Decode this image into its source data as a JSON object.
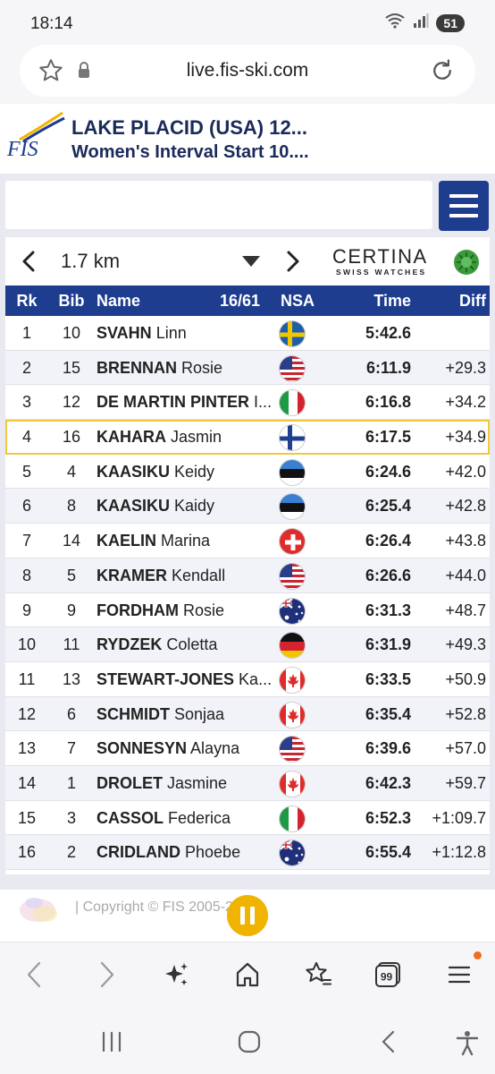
{
  "status_bar": {
    "time": "18:14",
    "battery": "51"
  },
  "browser": {
    "url": "live.fis-ski.com"
  },
  "event": {
    "logo_text": "FIS",
    "title": "LAKE PLACID (USA) 12...",
    "subtitle": "Women's Interval Start 10...."
  },
  "results": {
    "split_label": "1.7 km",
    "sponsor_name": "CERTINA",
    "sponsor_tagline": "SWISS WATCHES",
    "columns": {
      "rank": "Rk",
      "bib": "Bib",
      "name": "Name",
      "count": "16/61",
      "nsa": "NSA",
      "time": "Time",
      "diff": "Diff"
    },
    "rows": [
      {
        "rank": "1",
        "bib": "10",
        "last": "SVAHN",
        "first": "Linn",
        "nsa": "SWE",
        "time": "5:42.6",
        "diff": ""
      },
      {
        "rank": "2",
        "bib": "15",
        "last": "BRENNAN",
        "first": "Rosie",
        "nsa": "USA",
        "time": "6:11.9",
        "diff": "+29.3"
      },
      {
        "rank": "3",
        "bib": "12",
        "last": "DE MARTIN PINTER",
        "first": "I...",
        "nsa": "ITA",
        "time": "6:16.8",
        "diff": "+34.2"
      },
      {
        "rank": "4",
        "bib": "16",
        "last": "KAHARA",
        "first": "Jasmin",
        "nsa": "FIN",
        "time": "6:17.5",
        "diff": "+34.9"
      },
      {
        "rank": "5",
        "bib": "4",
        "last": "KAASIKU",
        "first": "Keidy",
        "nsa": "EST",
        "time": "6:24.6",
        "diff": "+42.0"
      },
      {
        "rank": "6",
        "bib": "8",
        "last": "KAASIKU",
        "first": "Kaidy",
        "nsa": "EST",
        "time": "6:25.4",
        "diff": "+42.8"
      },
      {
        "rank": "7",
        "bib": "14",
        "last": "KAELIN",
        "first": "Marina",
        "nsa": "SUI",
        "time": "6:26.4",
        "diff": "+43.8"
      },
      {
        "rank": "8",
        "bib": "5",
        "last": "KRAMER",
        "first": "Kendall",
        "nsa": "USA",
        "time": "6:26.6",
        "diff": "+44.0"
      },
      {
        "rank": "9",
        "bib": "9",
        "last": "FORDHAM",
        "first": "Rosie",
        "nsa": "AUS",
        "time": "6:31.3",
        "diff": "+48.7"
      },
      {
        "rank": "10",
        "bib": "11",
        "last": "RYDZEK",
        "first": "Coletta",
        "nsa": "GER",
        "time": "6:31.9",
        "diff": "+49.3"
      },
      {
        "rank": "11",
        "bib": "13",
        "last": "STEWART-JONES",
        "first": "Ka...",
        "nsa": "CAN",
        "time": "6:33.5",
        "diff": "+50.9"
      },
      {
        "rank": "12",
        "bib": "6",
        "last": "SCHMIDT",
        "first": "Sonjaa",
        "nsa": "CAN",
        "time": "6:35.4",
        "diff": "+52.8"
      },
      {
        "rank": "13",
        "bib": "7",
        "last": "SONNESYN",
        "first": "Alayna",
        "nsa": "USA",
        "time": "6:39.6",
        "diff": "+57.0"
      },
      {
        "rank": "14",
        "bib": "1",
        "last": "DROLET",
        "first": "Jasmine",
        "nsa": "CAN",
        "time": "6:42.3",
        "diff": "+59.7"
      },
      {
        "rank": "15",
        "bib": "3",
        "last": "CASSOL",
        "first": "Federica",
        "nsa": "ITA",
        "time": "6:52.3",
        "diff": "+1:09.7"
      },
      {
        "rank": "16",
        "bib": "2",
        "last": "CRIDLAND",
        "first": "Phoebe",
        "nsa": "AUS",
        "time": "6:55.4",
        "diff": "+1:12.8"
      }
    ],
    "highlighted_rank": "4"
  },
  "footer": {
    "copyright": "| Copyright © FIS 2005-2026"
  },
  "colors": {
    "fis_blue": "#1e3d8f",
    "highlight": "#f2c740",
    "pause": "#f0b400",
    "notification": "#f26b21"
  },
  "icons": {
    "browser_nav": [
      "back-icon",
      "forward-icon",
      "ai-sparkle-icon",
      "home-icon",
      "bookmark-star-icon",
      "tabs-icon",
      "menu-icon"
    ],
    "system_nav": [
      "recent-apps-icon",
      "home-circle-icon",
      "system-back-icon",
      "accessibility-icon"
    ]
  },
  "browser_nav": {
    "tabs_count": "99"
  }
}
